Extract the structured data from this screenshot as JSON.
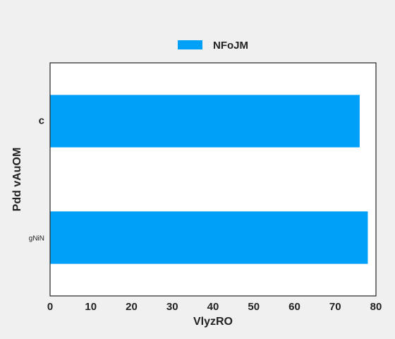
{
  "chart_data": {
    "type": "bar",
    "orientation": "horizontal",
    "categories": [
      "c",
      "gNiN"
    ],
    "series": [
      {
        "name": "NFoJM",
        "values": [
          76,
          78
        ],
        "color": "#00a0f8"
      }
    ],
    "xlabel": "VlyzRO",
    "ylabel": "Pdd vAuOM",
    "xlim": [
      0,
      80
    ],
    "xticks": [
      0,
      10,
      20,
      30,
      40,
      50,
      60,
      70,
      80
    ],
    "grid": false,
    "legend_position": "top-center",
    "plot_background": "#ffffff",
    "page_background": "#f0f0f0"
  }
}
